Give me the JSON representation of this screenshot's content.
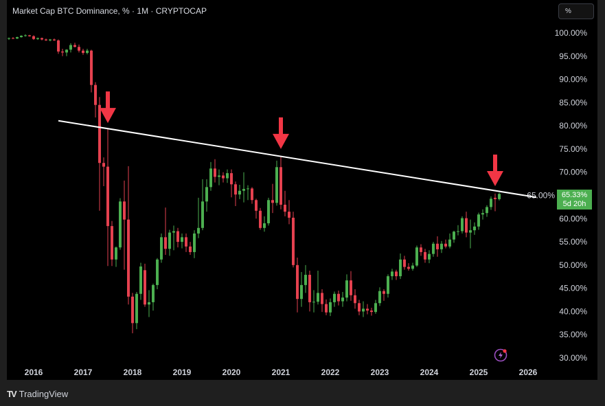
{
  "header": {
    "title": "Market Cap BTC Dominance, % · 1M · CRYPTOCAP"
  },
  "toolbar": {
    "scale_button": "%"
  },
  "price_label": {
    "value": "65.33%",
    "countdown": "5d 20h",
    "color": "#4caf50"
  },
  "footer": {
    "brand": "TradingView",
    "logo": "17"
  },
  "colors": {
    "up": "#4caf50",
    "down": "#e5414f",
    "trendline": "#ffffff",
    "arrow": "#f23645",
    "background": "#000000"
  },
  "chart_data": {
    "type": "candlestick",
    "title": "Market Cap BTC Dominance, % · 1M · CRYPTOCAP",
    "interval": "1M",
    "x_ticks": [
      "2016",
      "2017",
      "2018",
      "2019",
      "2020",
      "2021",
      "2022",
      "2023",
      "2024",
      "2025",
      "2026"
    ],
    "y_ticks": [
      "100.00%",
      "95.00%",
      "90.00%",
      "85.00%",
      "80.00%",
      "75.00%",
      "70.00%",
      "65.00%",
      "60.00%",
      "55.00%",
      "50.00%",
      "45.00%",
      "40.00%",
      "35.00%",
      "30.00%"
    ],
    "ylim": [
      30,
      100
    ],
    "xlim": [
      "2015-07",
      "2026-03"
    ],
    "grid": false,
    "candle_fields": [
      "date",
      "open",
      "high",
      "low",
      "close"
    ],
    "candles": [
      [
        "2015-07",
        98.8,
        99.0,
        98.5,
        98.9
      ],
      [
        "2015-08",
        98.9,
        99.1,
        98.7,
        98.8
      ],
      [
        "2015-09",
        98.8,
        99.2,
        98.7,
        99.1
      ],
      [
        "2015-10",
        99.1,
        99.5,
        99.0,
        99.4
      ],
      [
        "2015-11",
        99.4,
        99.7,
        99.2,
        99.5
      ],
      [
        "2015-12",
        99.5,
        99.6,
        99.2,
        99.3
      ],
      [
        "2016-01",
        99.3,
        99.5,
        98.5,
        98.7
      ],
      [
        "2016-02",
        98.7,
        99.0,
        98.5,
        98.9
      ],
      [
        "2016-03",
        98.9,
        99.0,
        98.4,
        98.6
      ],
      [
        "2016-04",
        98.6,
        98.8,
        98.3,
        98.4
      ],
      [
        "2016-05",
        98.4,
        98.7,
        98.2,
        98.6
      ],
      [
        "2016-06",
        98.6,
        98.8,
        98.3,
        98.4
      ],
      [
        "2016-07",
        98.4,
        98.6,
        95.5,
        96.0
      ],
      [
        "2016-08",
        96.0,
        96.6,
        95.0,
        95.8
      ],
      [
        "2016-09",
        95.8,
        96.5,
        95.0,
        96.4
      ],
      [
        "2016-10",
        96.4,
        97.8,
        95.8,
        97.4
      ],
      [
        "2016-11",
        97.4,
        97.9,
        96.9,
        97.0
      ],
      [
        "2016-12",
        97.0,
        97.5,
        95.8,
        96.2
      ],
      [
        "2017-01",
        96.2,
        96.6,
        95.3,
        95.7
      ],
      [
        "2017-02",
        95.7,
        96.6,
        95.4,
        96.2
      ],
      [
        "2017-03",
        96.2,
        96.4,
        87.2,
        88.8
      ],
      [
        "2017-04",
        88.8,
        89.4,
        81.8,
        84.5
      ],
      [
        "2017-05",
        84.5,
        86.2,
        61.7,
        72.0
      ],
      [
        "2017-06",
        72.0,
        73.2,
        67.0,
        71.2
      ],
      [
        "2017-07",
        71.2,
        79.4,
        49.8,
        58.4
      ],
      [
        "2017-08",
        58.4,
        59.5,
        49.8,
        51.2
      ],
      [
        "2017-09",
        51.2,
        54.0,
        49.6,
        53.8
      ],
      [
        "2017-10",
        53.8,
        64.4,
        53.3,
        63.7
      ],
      [
        "2017-11",
        63.7,
        68.2,
        49.0,
        59.8
      ],
      [
        "2017-12",
        59.8,
        71.3,
        41.5,
        43.2
      ],
      [
        "2018-01",
        43.2,
        44.0,
        35.3,
        37.5
      ],
      [
        "2018-02",
        37.5,
        44.2,
        36.2,
        43.8
      ],
      [
        "2018-03",
        43.8,
        50.5,
        42.5,
        49.7
      ],
      [
        "2018-04",
        48.9,
        50.3,
        41.0,
        41.5
      ],
      [
        "2018-05",
        41.5,
        44.6,
        38.8,
        42.0
      ],
      [
        "2018-06",
        42.0,
        46.0,
        40.2,
        45.7
      ],
      [
        "2018-07",
        45.7,
        51.5,
        44.8,
        51.2
      ],
      [
        "2018-08",
        51.2,
        56.8,
        50.5,
        56.0
      ],
      [
        "2018-09",
        56.0,
        62.4,
        52.2,
        53.5
      ],
      [
        "2018-10",
        53.5,
        57.6,
        52.0,
        57.0
      ],
      [
        "2018-11",
        57.0,
        58.5,
        53.2,
        57.3
      ],
      [
        "2018-12",
        57.3,
        58.0,
        53.8,
        55.0
      ],
      [
        "2019-01",
        55.0,
        56.8,
        53.6,
        56.0
      ],
      [
        "2019-02",
        56.0,
        56.8,
        52.8,
        54.0
      ],
      [
        "2019-03",
        54.0,
        55.0,
        52.2,
        52.8
      ],
      [
        "2019-04",
        52.8,
        57.5,
        51.5,
        56.8
      ],
      [
        "2019-05",
        56.8,
        64.5,
        55.8,
        58.0
      ],
      [
        "2019-06",
        58.0,
        68.5,
        57.5,
        63.7
      ],
      [
        "2019-07",
        63.7,
        68.5,
        61.5,
        66.8
      ],
      [
        "2019-08",
        66.8,
        72.2,
        66.0,
        70.8
      ],
      [
        "2019-09",
        70.8,
        72.8,
        67.8,
        69.0
      ],
      [
        "2019-10",
        69.0,
        70.6,
        67.2,
        69.3
      ],
      [
        "2019-11",
        69.3,
        70.0,
        67.8,
        68.7
      ],
      [
        "2019-12",
        68.7,
        70.6,
        67.7,
        69.8
      ],
      [
        "2020-01",
        69.8,
        70.6,
        64.6,
        67.4
      ],
      [
        "2020-02",
        67.4,
        68.0,
        62.7,
        65.2
      ],
      [
        "2020-03",
        65.2,
        67.3,
        64.2,
        66.0
      ],
      [
        "2020-04",
        66.0,
        70.0,
        63.5,
        66.4
      ],
      [
        "2020-05",
        66.4,
        67.2,
        64.0,
        66.5
      ],
      [
        "2020-06",
        66.5,
        66.8,
        63.2,
        64.0
      ],
      [
        "2020-07",
        64.0,
        64.3,
        60.0,
        61.7
      ],
      [
        "2020-08",
        61.7,
        62.3,
        57.6,
        58.0
      ],
      [
        "2020-09",
        58.0,
        60.5,
        57.2,
        59.0
      ],
      [
        "2020-10",
        59.0,
        64.5,
        58.5,
        64.0
      ],
      [
        "2020-11",
        64.0,
        67.5,
        61.2,
        63.4
      ],
      [
        "2020-12",
        63.4,
        72.5,
        62.8,
        71.1
      ],
      [
        "2021-01",
        71.1,
        73.5,
        62.0,
        63.0
      ],
      [
        "2021-02",
        63.0,
        66.0,
        60.5,
        61.5
      ],
      [
        "2021-03",
        61.5,
        64.0,
        58.8,
        60.2
      ],
      [
        "2021-04",
        60.2,
        61.5,
        49.5,
        50.0
      ],
      [
        "2021-05",
        50.0,
        51.6,
        39.8,
        42.7
      ],
      [
        "2021-06",
        42.7,
        48.5,
        41.0,
        45.7
      ],
      [
        "2021-07",
        45.7,
        50.0,
        44.0,
        47.9
      ],
      [
        "2021-08",
        47.9,
        48.8,
        40.0,
        42.0
      ],
      [
        "2021-09",
        42.0,
        44.6,
        39.8,
        42.1
      ],
      [
        "2021-10",
        42.1,
        48.8,
        41.5,
        44.0
      ],
      [
        "2021-11",
        44.0,
        44.8,
        39.9,
        41.6
      ],
      [
        "2021-12",
        41.6,
        42.6,
        39.2,
        39.8
      ],
      [
        "2022-01",
        39.8,
        42.8,
        39.0,
        42.0
      ],
      [
        "2022-02",
        42.0,
        44.3,
        41.0,
        43.8
      ],
      [
        "2022-03",
        43.8,
        44.5,
        41.3,
        42.2
      ],
      [
        "2022-04",
        42.2,
        44.2,
        41.0,
        43.0
      ],
      [
        "2022-05",
        43.0,
        48.0,
        42.2,
        46.7
      ],
      [
        "2022-06",
        46.7,
        48.7,
        42.3,
        43.5
      ],
      [
        "2022-07",
        43.5,
        44.8,
        40.6,
        41.8
      ],
      [
        "2022-08",
        41.8,
        42.5,
        39.2,
        40.0
      ],
      [
        "2022-09",
        40.0,
        42.2,
        38.8,
        40.6
      ],
      [
        "2022-10",
        40.6,
        41.6,
        39.4,
        40.2
      ],
      [
        "2022-11",
        40.2,
        40.8,
        39.1,
        39.9
      ],
      [
        "2022-12",
        39.9,
        42.5,
        39.5,
        41.8
      ],
      [
        "2023-01",
        41.8,
        45.2,
        41.2,
        44.4
      ],
      [
        "2023-02",
        44.4,
        44.8,
        42.3,
        43.8
      ],
      [
        "2023-03",
        43.8,
        48.0,
        43.0,
        47.6
      ],
      [
        "2023-04",
        47.6,
        49.2,
        46.8,
        48.6
      ],
      [
        "2023-05",
        48.6,
        49.0,
        46.8,
        47.6
      ],
      [
        "2023-06",
        47.6,
        52.5,
        47.0,
        51.2
      ],
      [
        "2023-07",
        51.2,
        52.0,
        49.0,
        49.6
      ],
      [
        "2023-08",
        49.6,
        50.4,
        48.8,
        49.2
      ],
      [
        "2023-09",
        49.2,
        50.5,
        48.8,
        49.9
      ],
      [
        "2023-10",
        49.9,
        54.2,
        49.6,
        53.8
      ],
      [
        "2023-11",
        53.8,
        54.5,
        52.0,
        52.8
      ],
      [
        "2023-12",
        52.8,
        53.5,
        50.5,
        51.2
      ],
      [
        "2024-01",
        51.2,
        53.2,
        50.4,
        52.4
      ],
      [
        "2024-02",
        52.4,
        55.0,
        51.8,
        54.6
      ],
      [
        "2024-03",
        54.6,
        56.2,
        51.8,
        53.4
      ],
      [
        "2024-04",
        53.4,
        55.2,
        52.6,
        54.6
      ],
      [
        "2024-05",
        54.6,
        55.5,
        53.6,
        54.0
      ],
      [
        "2024-06",
        54.0,
        56.8,
        53.6,
        55.5
      ],
      [
        "2024-07",
        55.5,
        57.4,
        54.8,
        57.2
      ],
      [
        "2024-08",
        57.2,
        58.6,
        56.4,
        57.3
      ],
      [
        "2024-09",
        57.3,
        60.5,
        56.8,
        60.1
      ],
      [
        "2024-10",
        60.1,
        61.5,
        56.0,
        57.0
      ],
      [
        "2024-11",
        57.0,
        59.8,
        53.6,
        57.5
      ],
      [
        "2024-12",
        57.5,
        59.2,
        56.5,
        58.3
      ],
      [
        "2025-01",
        58.3,
        61.3,
        57.6,
        60.9
      ],
      [
        "2025-02",
        60.9,
        62.0,
        59.8,
        61.2
      ],
      [
        "2025-03",
        61.2,
        62.9,
        60.4,
        62.5
      ],
      [
        "2025-04",
        62.5,
        64.8,
        61.9,
        64.3
      ],
      [
        "2025-05",
        64.5,
        65.4,
        61.6,
        64.2
      ],
      [
        "2025-06",
        64.2,
        65.6,
        63.9,
        65.33
      ]
    ],
    "last_value": 65.33,
    "annotations": {
      "trendline": {
        "from": [
          "2016-07",
          81.1
        ],
        "to": [
          "2026-03",
          64.6
        ]
      },
      "arrows_down": [
        [
          "2017-07",
          80.6
        ],
        [
          "2021-01",
          75.0
        ],
        [
          "2025-05",
          67.0
        ]
      ]
    }
  }
}
